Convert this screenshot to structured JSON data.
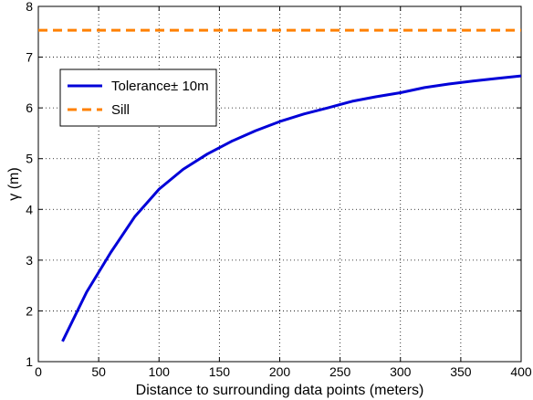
{
  "chart_data": {
    "type": "line",
    "xlabel": "Distance to surrounding data points (meters)",
    "ylabel": "γ (m)",
    "xlim": [
      0,
      400
    ],
    "ylim": [
      1,
      8
    ],
    "xticks": [
      0,
      50,
      100,
      150,
      200,
      250,
      300,
      350,
      400
    ],
    "yticks": [
      1,
      2,
      3,
      4,
      5,
      6,
      7,
      8
    ],
    "grid": true,
    "legend_position": "upper-left",
    "series": [
      {
        "name": "Tolerance± 10m",
        "color": "#0000d8",
        "style": "solid",
        "x": [
          20,
          40,
          60,
          80,
          100,
          120,
          140,
          160,
          180,
          200,
          220,
          240,
          260,
          280,
          300,
          320,
          340,
          360,
          380,
          400
        ],
        "y": [
          1.4,
          2.37,
          3.15,
          3.86,
          4.4,
          4.79,
          5.09,
          5.34,
          5.55,
          5.73,
          5.88,
          6.0,
          6.13,
          6.22,
          6.3,
          6.4,
          6.47,
          6.53,
          6.58,
          6.63
        ]
      },
      {
        "name": "Sill",
        "color": "#ff8000",
        "style": "dashed",
        "x": [
          0,
          400
        ],
        "y": [
          7.53,
          7.53
        ]
      }
    ]
  }
}
